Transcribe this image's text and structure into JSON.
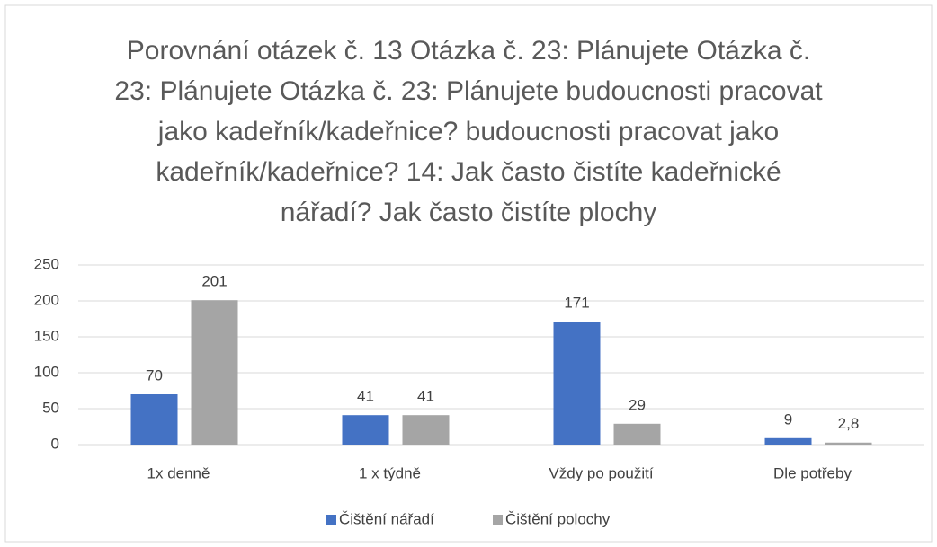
{
  "chart_data": {
    "type": "bar",
    "title": "Porovnání otázek č. 13 Otázka č. 23: Plánujete Otázka č. 23: Plánujete Otázka č. 23: Plánujete  budoucnosti pracovat jako kadeřník/kadeřnice?  budoucnosti pracovat jako kadeřník/kadeřnice?  14: Jak často čistíte kadeřnické nářadí? Jak často čistíte plochy",
    "categories": [
      "1x denně",
      "1 x týdně",
      "Vždy po použití",
      "Dle potřeby"
    ],
    "series": [
      {
        "name": "Čištění nářadí",
        "color": "#4472c4",
        "values": [
          70,
          41,
          171,
          9
        ]
      },
      {
        "name": "Čištění polochy",
        "color": "#a5a5a5",
        "values": [
          201,
          41,
          29,
          2.8
        ],
        "value_labels": [
          "201",
          "41",
          "29",
          "2,8"
        ]
      }
    ],
    "ylim": [
      0,
      250
    ],
    "yticks": [
      0,
      50,
      100,
      150,
      200,
      250
    ],
    "grid": true,
    "legend": "bottom"
  }
}
